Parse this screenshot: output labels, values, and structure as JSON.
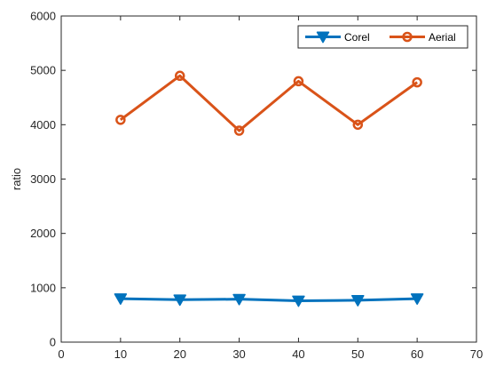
{
  "chart_data": {
    "type": "line",
    "title": "",
    "xlabel": "",
    "ylabel": "ratio",
    "xlim": [
      0,
      70
    ],
    "ylim": [
      0,
      6000
    ],
    "xticks": [
      0,
      10,
      20,
      30,
      40,
      50,
      60,
      70
    ],
    "yticks": [
      0,
      1000,
      2000,
      3000,
      4000,
      5000,
      6000
    ],
    "grid": false,
    "legend_position": "top-right",
    "x": [
      10,
      20,
      30,
      40,
      50,
      60
    ],
    "series": [
      {
        "name": "Corel",
        "marker": "triangle-down",
        "color": "#0072BD",
        "values": [
          800,
          780,
          790,
          760,
          770,
          800
        ]
      },
      {
        "name": "Aerial",
        "marker": "circle",
        "color": "#D95319",
        "values": [
          4090,
          4900,
          3890,
          4800,
          4000,
          4780
        ]
      }
    ]
  }
}
